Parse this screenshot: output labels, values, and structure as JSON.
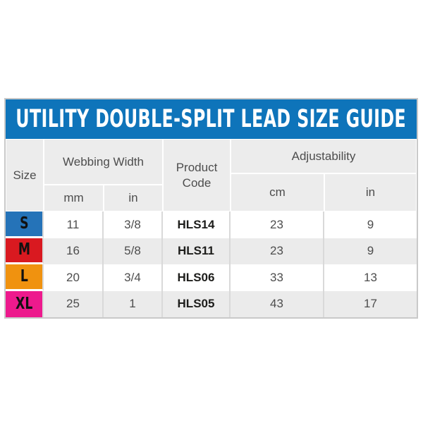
{
  "title": "UTILITY DOUBLE-SPLIT LEAD SIZE GUIDE",
  "colors": {
    "title_bar_bg": "#0e74ba",
    "title_text": "#ffffff",
    "header_cell_bg": "#ececec",
    "row_bg": "#ffffff",
    "row_alt_bg": "#ebebeb",
    "grid_line": "#d9d9d9",
    "outer_border": "#c9c9c9",
    "body_text": "#4d4d4d",
    "code_text": "#1d1d1b",
    "size_s_bg": "#2573b8",
    "size_m_bg": "#d91920",
    "size_l_bg": "#f0920f",
    "size_xl_bg": "#ed1a8d",
    "size_letter": "#111111"
  },
  "table": {
    "headers": {
      "size": "Size",
      "webbing_width": "Webbing Width",
      "product_code": "Product Code",
      "adjustability": "Adjustability",
      "webbing_units": [
        "mm",
        "in"
      ],
      "adjustability_units": [
        "cm",
        "in"
      ]
    },
    "rows": [
      {
        "size": "S",
        "webbing_mm": "11",
        "webbing_in": "3/8",
        "product_code": "HLS14",
        "adjustability_cm": "23",
        "adjustability_in": "9"
      },
      {
        "size": "M",
        "webbing_mm": "16",
        "webbing_in": "5/8",
        "product_code": "HLS11",
        "adjustability_cm": "23",
        "adjustability_in": "9"
      },
      {
        "size": "L",
        "webbing_mm": "20",
        "webbing_in": "3/4",
        "product_code": "HLS06",
        "adjustability_cm": "33",
        "adjustability_in": "13"
      },
      {
        "size": "XL",
        "webbing_mm": "25",
        "webbing_in": "1",
        "product_code": "HLS05",
        "adjustability_cm": "43",
        "adjustability_in": "17"
      }
    ]
  },
  "chart_data": {
    "type": "table",
    "title": "UTILITY DOUBLE-SPLIT LEAD SIZE GUIDE",
    "columns": [
      "Size",
      "Webbing Width mm",
      "Webbing Width in",
      "Product Code",
      "Adjustability cm",
      "Adjustability in"
    ],
    "rows": [
      [
        "S",
        "11",
        "3/8",
        "HLS14",
        "23",
        "9"
      ],
      [
        "M",
        "16",
        "5/8",
        "HLS11",
        "23",
        "9"
      ],
      [
        "L",
        "20",
        "3/4",
        "HLS06",
        "33",
        "13"
      ],
      [
        "XL",
        "25",
        "1",
        "HLS05",
        "43",
        "17"
      ]
    ]
  }
}
